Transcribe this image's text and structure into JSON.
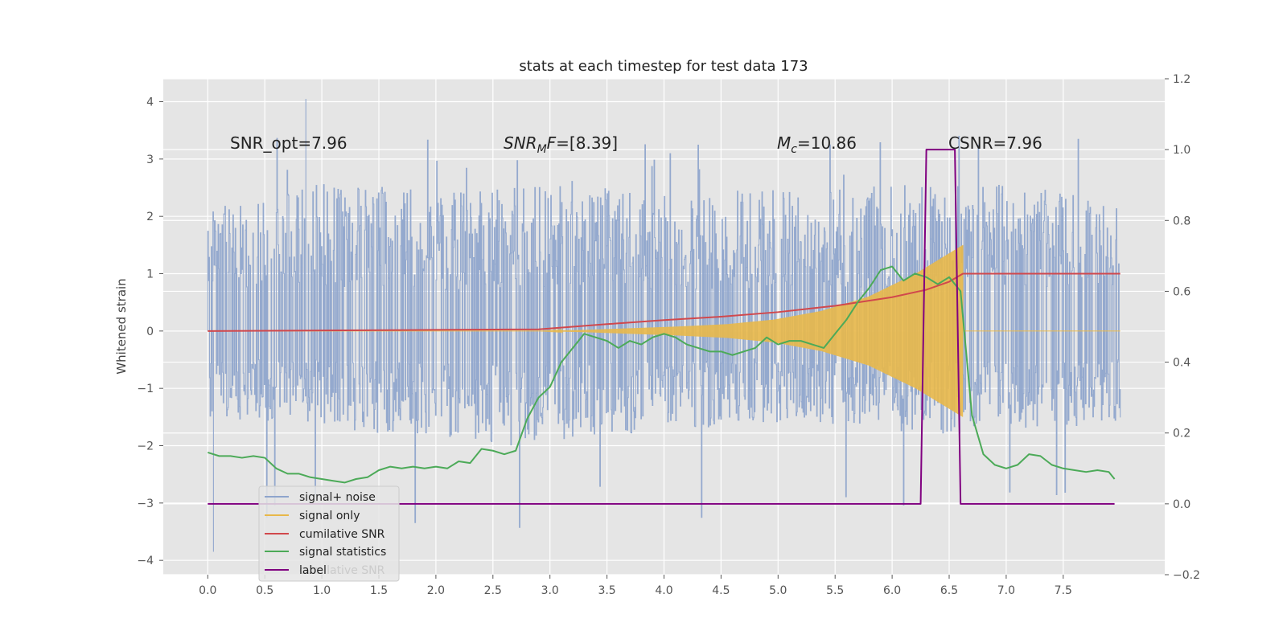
{
  "chart_data": {
    "type": "line",
    "title": "stats at each timestep for test data 173",
    "ylabel": "Whitened strain",
    "xlabel": "",
    "xlim": [
      -0.39,
      8.39
    ],
    "ylim": [
      -4.25,
      4.4
    ],
    "y2lim": [
      -0.2,
      1.2
    ],
    "grid": true,
    "legend_position": "lower-left",
    "x_ticks": [
      "0.0",
      "0.5",
      "1.0",
      "1.5",
      "2.0",
      "2.5",
      "3.0",
      "3.5",
      "4.0",
      "4.5",
      "5.0",
      "5.5",
      "6.0",
      "6.5",
      "7.0",
      "7.5"
    ],
    "y_ticks": [
      "4",
      "3",
      "2",
      "1",
      "0",
      "−1",
      "−2",
      "−3",
      "−4"
    ],
    "y2_ticks": [
      "1.2",
      "1.0",
      "0.8",
      "0.6",
      "0.4",
      "0.2",
      "0.0",
      "−0.2"
    ],
    "annotations": [
      {
        "text": "SNR_opt=7.96",
        "x": 0.2,
        "y": 3.2
      },
      {
        "text": "SNR_MF=[8.39]",
        "x": 2.6,
        "y": 3.2
      },
      {
        "text": "M_c=10.86",
        "x": 5.0,
        "y": 3.2
      },
      {
        "text": "CSNR=7.96",
        "x": 6.5,
        "y": 3.2
      }
    ],
    "series": [
      {
        "name": "signal+ noise",
        "color": "#8fa5cc",
        "axis": "left",
        "x_range": [
          0.0,
          8.0
        ],
        "envelope_min": [
          -1.5,
          -1.6,
          -1.7,
          -1.8,
          -1.9,
          -2.0,
          -1.9,
          -1.8,
          -1.7,
          -1.6,
          -1.6,
          -1.7,
          -1.8,
          -1.8,
          -1.7,
          -1.6
        ],
        "envelope_max": [
          2.1,
          2.4,
          2.6,
          2.5,
          2.4,
          2.5,
          2.6,
          2.4,
          2.3,
          2.5,
          2.4,
          2.6,
          2.5,
          2.7,
          2.5,
          2.2
        ],
        "peak_max": 4.05,
        "peak_min": -3.85
      },
      {
        "name": "signal only",
        "color": "#e8b84a",
        "axis": "left",
        "chirp_start": 2.9,
        "chirp_end": 6.62,
        "amplitude": [
          0.0,
          0.02,
          0.05,
          0.08,
          0.12,
          0.2,
          0.35,
          0.6,
          1.0,
          1.5
        ]
      },
      {
        "name": "cumilative SNR",
        "color": "#d1484c",
        "axis": "left",
        "x": [
          0.0,
          1.0,
          2.0,
          2.9,
          3.5,
          4.0,
          4.5,
          5.0,
          5.5,
          6.0,
          6.3,
          6.5,
          6.62,
          7.0,
          7.5,
          8.0
        ],
        "y": [
          0.0,
          0.01,
          0.02,
          0.03,
          0.12,
          0.19,
          0.25,
          0.33,
          0.44,
          0.59,
          0.72,
          0.86,
          1.0,
          1.0,
          1.0,
          1.0
        ]
      },
      {
        "name": "signal statistics",
        "color": "#4caa58",
        "axis": "right",
        "x": [
          0.0,
          0.1,
          0.2,
          0.3,
          0.4,
          0.5,
          0.6,
          0.7,
          0.8,
          0.9,
          1.0,
          1.1,
          1.2,
          1.3,
          1.4,
          1.5,
          1.6,
          1.7,
          1.8,
          1.9,
          2.0,
          2.1,
          2.2,
          2.3,
          2.4,
          2.5,
          2.6,
          2.7,
          2.8,
          2.9,
          3.0,
          3.1,
          3.2,
          3.3,
          3.4,
          3.5,
          3.6,
          3.7,
          3.8,
          3.9,
          4.0,
          4.1,
          4.2,
          4.3,
          4.4,
          4.5,
          4.6,
          4.7,
          4.8,
          4.9,
          5.0,
          5.1,
          5.2,
          5.3,
          5.4,
          5.5,
          5.6,
          5.7,
          5.8,
          5.9,
          6.0,
          6.1,
          6.2,
          6.3,
          6.4,
          6.5,
          6.6,
          6.7,
          6.8,
          6.9,
          7.0,
          7.1,
          7.2,
          7.3,
          7.4,
          7.5,
          7.6,
          7.7,
          7.8,
          7.9,
          7.95
        ],
        "y": [
          0.145,
          0.135,
          0.135,
          0.13,
          0.135,
          0.13,
          0.1,
          0.085,
          0.085,
          0.075,
          0.07,
          0.065,
          0.06,
          0.07,
          0.075,
          0.095,
          0.105,
          0.1,
          0.105,
          0.1,
          0.105,
          0.1,
          0.12,
          0.115,
          0.155,
          0.15,
          0.14,
          0.15,
          0.24,
          0.3,
          0.33,
          0.4,
          0.44,
          0.48,
          0.47,
          0.46,
          0.44,
          0.46,
          0.45,
          0.47,
          0.48,
          0.47,
          0.45,
          0.44,
          0.43,
          0.43,
          0.42,
          0.43,
          0.44,
          0.47,
          0.45,
          0.46,
          0.46,
          0.45,
          0.44,
          0.48,
          0.52,
          0.57,
          0.61,
          0.66,
          0.67,
          0.63,
          0.65,
          0.64,
          0.62,
          0.64,
          0.6,
          0.25,
          0.14,
          0.11,
          0.1,
          0.11,
          0.14,
          0.135,
          0.11,
          0.1,
          0.095,
          0.09,
          0.095,
          0.09,
          0.07
        ]
      },
      {
        "name": "label",
        "color": "#800080",
        "axis": "right",
        "x": [
          0.0,
          6.25,
          6.3,
          6.55,
          6.6,
          7.95
        ],
        "y": [
          0.0,
          0.0,
          1.0,
          1.0,
          0.0,
          0.0
        ]
      }
    ],
    "legend_ghost_text": "cumilative SNR"
  }
}
